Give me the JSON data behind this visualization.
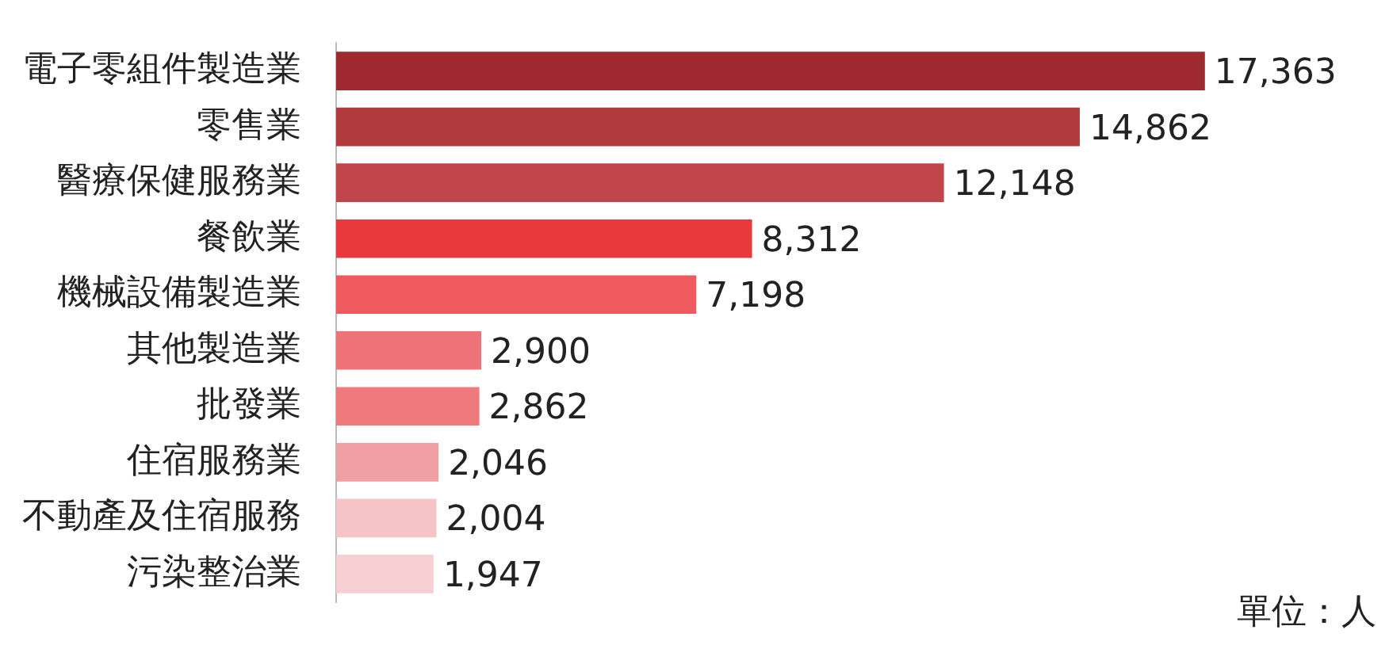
{
  "chart_data": {
    "type": "bar",
    "orientation": "horizontal",
    "categories": [
      "電子零組件製造業",
      "零售業",
      "醫療保健服務業",
      "餐飲業",
      "機械設備製造業",
      "其他製造業",
      "批發業",
      "住宿服務業",
      "不動產及住宿服務",
      "污染整治業"
    ],
    "values": [
      17363,
      14862,
      12148,
      8312,
      7198,
      2900,
      2862,
      2046,
      2004,
      1947
    ],
    "colors": [
      "#9e2a2f",
      "#b13a3e",
      "#c0464b",
      "#e8393e",
      "#ef5a5f",
      "#ee7378",
      "#ef7a7e",
      "#f0a0a3",
      "#f6c3c6",
      "#f5cfd1"
    ],
    "value_labels": [
      "17,363",
      "14,862",
      "12,148",
      "8,312",
      "7,198",
      "2,900",
      "2,862",
      "2,046",
      "2,004",
      "1,947"
    ],
    "legend": false,
    "annotations": [
      "單位：人"
    ]
  }
}
